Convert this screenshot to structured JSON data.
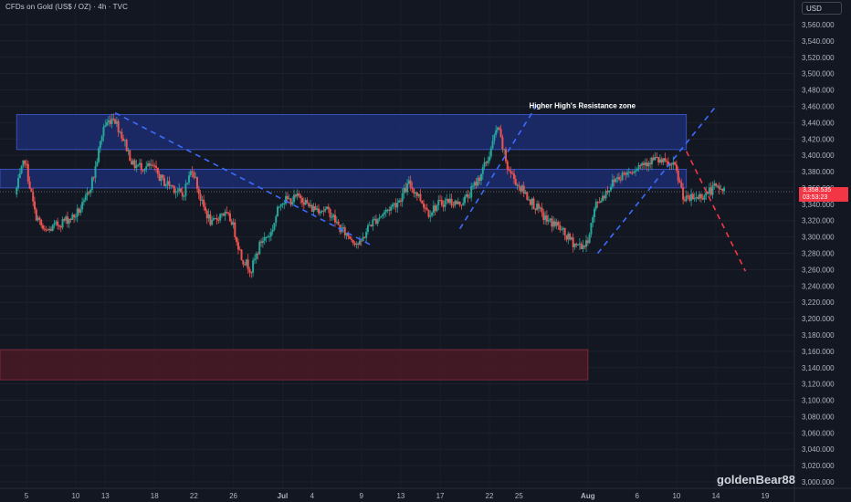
{
  "header": {
    "symbol": "CFDs on Gold (US$ / OZ) · 4h · TVC",
    "currency": "USD"
  },
  "watermark": "goldenBear88",
  "last_price": {
    "price": "3,358.535",
    "countdown": "03:53:23"
  },
  "colors": {
    "background": "#131722",
    "up": "#26a69a",
    "down": "#ef5350",
    "resistance_zone": "#1c2d6e",
    "support_zone": "#4a1a26",
    "trend_up": "#3d6bff",
    "trend_down_dashed": "#3d6bff",
    "projection": "#f23645"
  },
  "chart_data": {
    "type": "candlestick",
    "timeframe": "4h",
    "y_axis": {
      "range": [
        2995,
        3575
      ],
      "ticks": [
        3000,
        3020,
        3040,
        3060,
        3080,
        3100,
        3120,
        3140,
        3160,
        3180,
        3200,
        3220,
        3240,
        3260,
        3280,
        3300,
        3320,
        3340,
        3360,
        3380,
        3400,
        3420,
        3440,
        3460,
        3480,
        3500,
        3520,
        3540,
        3560
      ],
      "tick_labels": [
        "3,000.000",
        "3,020.000",
        "3,040.000",
        "3,060.000",
        "3,080.000",
        "3,100.000",
        "3,120.000",
        "3,140.000",
        "3,160.000",
        "3,180.000",
        "3,200.000",
        "3,220.000",
        "3,240.000",
        "3,260.000",
        "3,280.000",
        "3,300.000",
        "3,320.000",
        "3,340.000",
        "3,360.000",
        "3,380.000",
        "3,400.000",
        "3,420.000",
        "3,440.000",
        "3,460.000",
        "3,480.000",
        "3,500.000",
        "3,520.000",
        "3,540.000",
        "3,560.000"
      ]
    },
    "x_axis": {
      "range": [
        "Jun 4",
        "Aug 20"
      ],
      "ticks": [
        {
          "date": "Jun 5",
          "label": "5"
        },
        {
          "date": "Jun 10",
          "label": "10"
        },
        {
          "date": "Jun 13",
          "label": "13"
        },
        {
          "date": "Jun 18",
          "label": "18"
        },
        {
          "date": "Jun 22",
          "label": "22"
        },
        {
          "date": "Jun 26",
          "label": "26"
        },
        {
          "date": "Jul 1",
          "label": "Jul"
        },
        {
          "date": "Jul 4",
          "label": "4"
        },
        {
          "date": "Jul 9",
          "label": "9"
        },
        {
          "date": "Jul 13",
          "label": "13"
        },
        {
          "date": "Jul 17",
          "label": "17"
        },
        {
          "date": "Jul 22",
          "label": "22"
        },
        {
          "date": "Jul 25",
          "label": "25"
        },
        {
          "date": "Aug 1",
          "label": "Aug"
        },
        {
          "date": "Aug 6",
          "label": "6"
        },
        {
          "date": "Aug 10",
          "label": "10"
        },
        {
          "date": "Aug 14",
          "label": "14"
        },
        {
          "date": "Aug 19",
          "label": "19"
        }
      ]
    },
    "price_path": [
      {
        "date": "Jun 4",
        "price": 3352
      },
      {
        "date": "Jun 5",
        "price": 3395
      },
      {
        "date": "Jun 6",
        "price": 3330
      },
      {
        "date": "Jun 7",
        "price": 3305
      },
      {
        "date": "Jun 9",
        "price": 3320
      },
      {
        "date": "Jun 10",
        "price": 3325
      },
      {
        "date": "Jun 11",
        "price": 3340
      },
      {
        "date": "Jun 12",
        "price": 3375
      },
      {
        "date": "Jun 13",
        "price": 3435
      },
      {
        "date": "Jun 14",
        "price": 3448
      },
      {
        "date": "Jun 15",
        "price": 3420
      },
      {
        "date": "Jun 16",
        "price": 3388
      },
      {
        "date": "Jun 18",
        "price": 3385
      },
      {
        "date": "Jun 19",
        "price": 3368
      },
      {
        "date": "Jun 20",
        "price": 3362
      },
      {
        "date": "Jun 21",
        "price": 3350
      },
      {
        "date": "Jun 22",
        "price": 3385
      },
      {
        "date": "Jun 23",
        "price": 3340
      },
      {
        "date": "Jun 24",
        "price": 3315
      },
      {
        "date": "Jun 25",
        "price": 3330
      },
      {
        "date": "Jun 26",
        "price": 3320
      },
      {
        "date": "Jun 27",
        "price": 3275
      },
      {
        "date": "Jun 28",
        "price": 3260
      },
      {
        "date": "Jun 29",
        "price": 3295
      },
      {
        "date": "Jun 30",
        "price": 3305
      },
      {
        "date": "Jul 1",
        "price": 3345
      },
      {
        "date": "Jul 2",
        "price": 3345
      },
      {
        "date": "Jul 3",
        "price": 3350
      },
      {
        "date": "Jul 4",
        "price": 3335
      },
      {
        "date": "Jul 5",
        "price": 3335
      },
      {
        "date": "Jul 6",
        "price": 3330
      },
      {
        "date": "Jul 7",
        "price": 3310
      },
      {
        "date": "Jul 8",
        "price": 3300
      },
      {
        "date": "Jul 9",
        "price": 3290
      },
      {
        "date": "Jul 10",
        "price": 3315
      },
      {
        "date": "Jul 11",
        "price": 3325
      },
      {
        "date": "Jul 13",
        "price": 3345
      },
      {
        "date": "Jul 14",
        "price": 3365
      },
      {
        "date": "Jul 15",
        "price": 3350
      },
      {
        "date": "Jul 16",
        "price": 3330
      },
      {
        "date": "Jul 17",
        "price": 3340
      },
      {
        "date": "Jul 18",
        "price": 3345
      },
      {
        "date": "Jul 19",
        "price": 3340
      },
      {
        "date": "Jul 20",
        "price": 3350
      },
      {
        "date": "Jul 21",
        "price": 3370
      },
      {
        "date": "Jul 22",
        "price": 3395
      },
      {
        "date": "Jul 23",
        "price": 3435
      },
      {
        "date": "Jul 24",
        "price": 3385
      },
      {
        "date": "Jul 25",
        "price": 3365
      },
      {
        "date": "Jul 27",
        "price": 3335
      },
      {
        "date": "Jul 28",
        "price": 3320
      },
      {
        "date": "Jul 29",
        "price": 3315
      },
      {
        "date": "Jul 30",
        "price": 3300
      },
      {
        "date": "Jul 31",
        "price": 3290
      },
      {
        "date": "Aug 1",
        "price": 3290
      },
      {
        "date": "Aug 2",
        "price": 3340
      },
      {
        "date": "Aug 3",
        "price": 3355
      },
      {
        "date": "Aug 4",
        "price": 3372
      },
      {
        "date": "Aug 5",
        "price": 3378
      },
      {
        "date": "Aug 6",
        "price": 3385
      },
      {
        "date": "Aug 7",
        "price": 3392
      },
      {
        "date": "Aug 8",
        "price": 3395
      },
      {
        "date": "Aug 9",
        "price": 3390
      },
      {
        "date": "Aug 10",
        "price": 3385
      },
      {
        "date": "Aug 11",
        "price": 3345
      },
      {
        "date": "Aug 12",
        "price": 3348
      },
      {
        "date": "Aug 13",
        "price": 3352
      },
      {
        "date": "Aug 14",
        "price": 3360
      },
      {
        "date": "Aug 15",
        "price": 3358
      }
    ],
    "zones": [
      {
        "kind": "resistance",
        "from": "Jun 4",
        "to": "Aug 11",
        "low": 3407,
        "high": 3450,
        "label": "Higher High's Resistance zone"
      },
      {
        "kind": "resistance",
        "from": "Jun 3",
        "to": "Aug 11",
        "low": 3360,
        "high": 3383,
        "label": ""
      },
      {
        "kind": "support",
        "from": "Jun 3",
        "to": "Aug 1",
        "low": 3125,
        "high": 3162,
        "label": ""
      }
    ],
    "trendlines": [
      {
        "style": "dashed",
        "from": {
          "date": "Jun 14",
          "price": 3452
        },
        "to": {
          "date": "Jul 10",
          "price": 3290
        }
      },
      {
        "style": "dashed",
        "from": {
          "date": "Jul 19",
          "price": 3310
        },
        "to": {
          "date": "Jul 27",
          "price": 3465
        }
      },
      {
        "style": "dashed",
        "from": {
          "date": "Aug 2",
          "price": 3280
        },
        "to": {
          "date": "Aug 14",
          "price": 3460
        }
      },
      {
        "style": "dashed",
        "from": {
          "date": "Aug 11",
          "price": 3405
        },
        "to": {
          "date": "Aug 17",
          "price": 3258
        }
      }
    ],
    "annotation": "Higher High's Resistance zone"
  }
}
